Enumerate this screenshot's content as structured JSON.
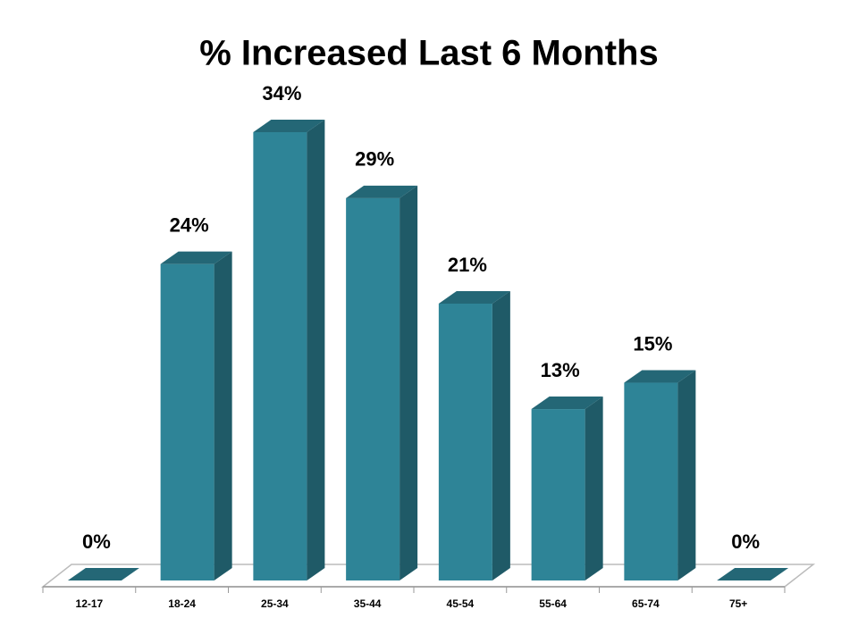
{
  "chart_data": {
    "type": "bar3d",
    "title": "% Increased Last 6 Months",
    "categories": [
      "12-17",
      "18-24",
      "25-34",
      "35-44",
      "45-54",
      "55-64",
      "65-74",
      "75+"
    ],
    "values": [
      0,
      24,
      34,
      29,
      21,
      13,
      15,
      0
    ],
    "value_labels": [
      "0%",
      "24%",
      "34%",
      "29%",
      "21%",
      "13%",
      "15%",
      "0%"
    ],
    "color": "#2e8497"
  }
}
